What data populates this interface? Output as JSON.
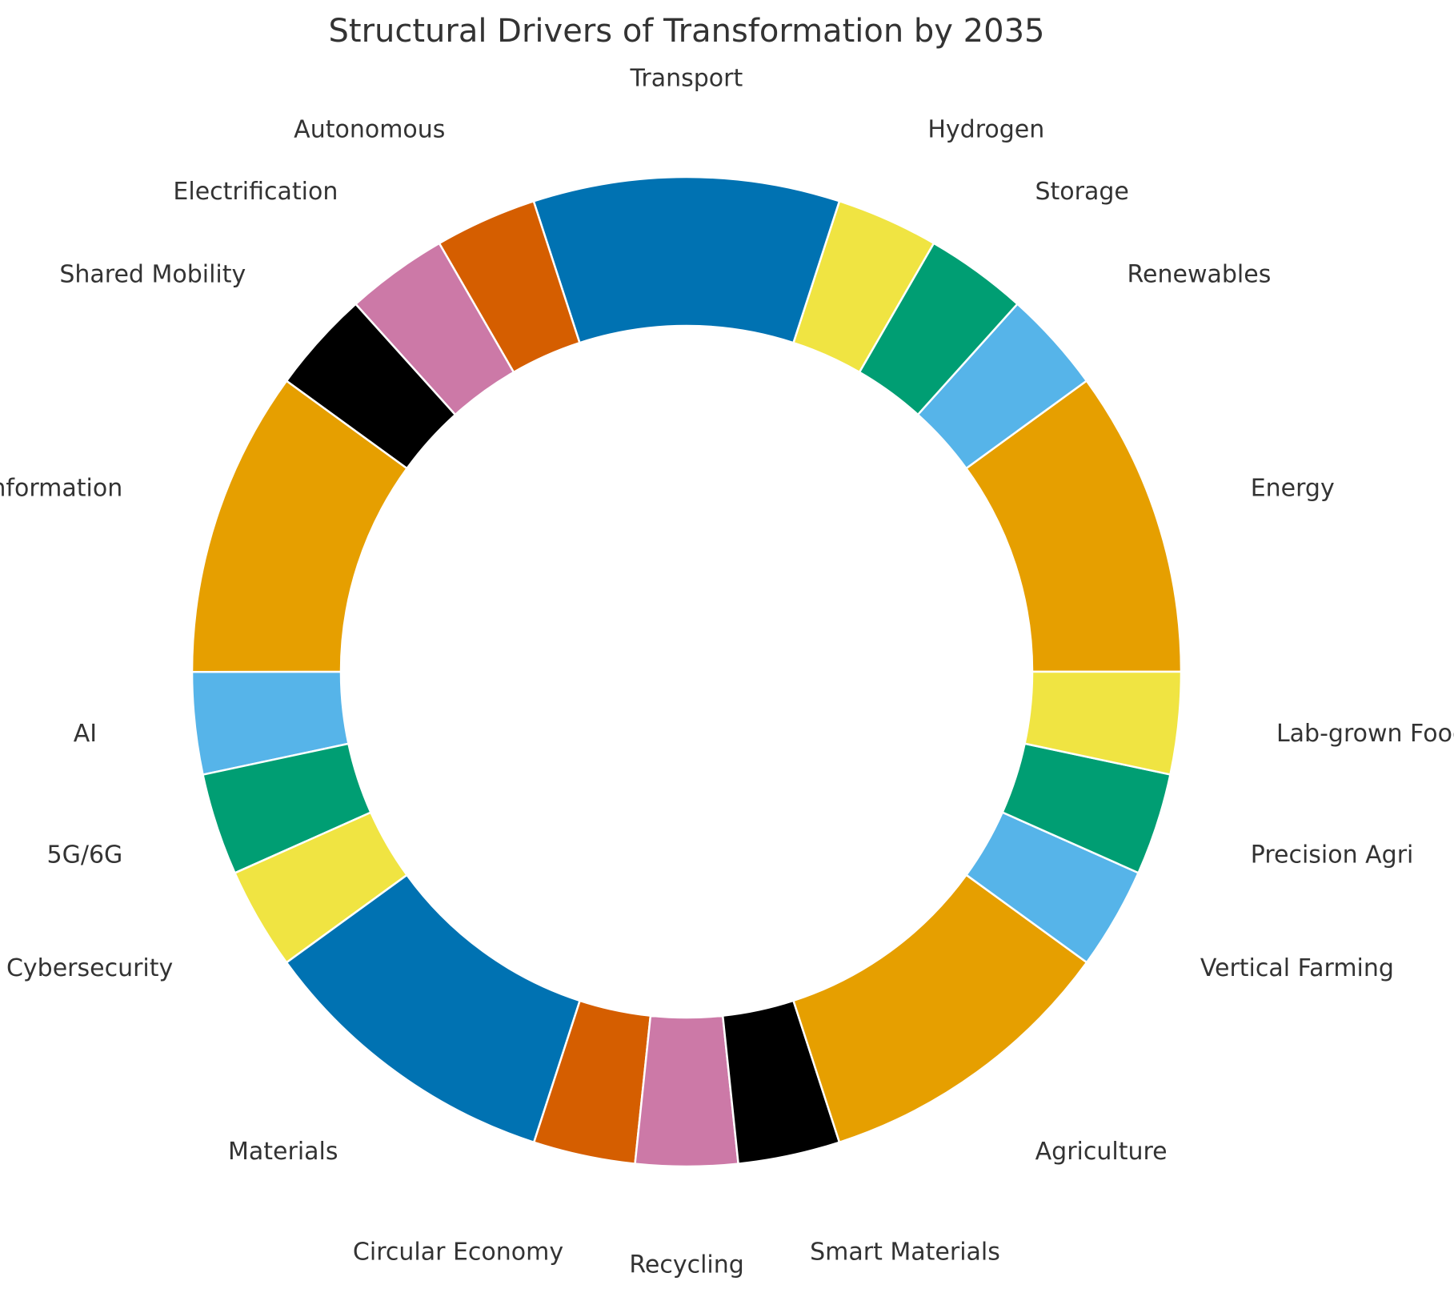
{
  "chart_data": {
    "type": "pie",
    "style": "donut",
    "title": "Structural Drivers of Transformation by 2035",
    "start_angle_deg": 0,
    "direction": "counterclockwise",
    "legend": "none",
    "slices": [
      {
        "label": "Energy",
        "value": 10,
        "color": "#E69F00"
      },
      {
        "label": "Renewables",
        "value": 3.33,
        "color": "#56B4E9"
      },
      {
        "label": "Storage",
        "value": 3.33,
        "color": "#009E73"
      },
      {
        "label": "Hydrogen",
        "value": 3.33,
        "color": "#F0E442"
      },
      {
        "label": "Transport",
        "value": 10,
        "color": "#0072B2"
      },
      {
        "label": "Autonomous",
        "value": 3.33,
        "color": "#D55E00"
      },
      {
        "label": "Electrification",
        "value": 3.33,
        "color": "#CC79A7"
      },
      {
        "label": "Shared Mobility",
        "value": 3.33,
        "color": "#000000"
      },
      {
        "label": "Information",
        "value": 10,
        "color": "#E69F00"
      },
      {
        "label": "AI",
        "value": 3.33,
        "color": "#56B4E9"
      },
      {
        "label": "5G/6G",
        "value": 3.33,
        "color": "#009E73"
      },
      {
        "label": "Cybersecurity",
        "value": 3.33,
        "color": "#F0E442"
      },
      {
        "label": "Materials",
        "value": 10,
        "color": "#0072B2"
      },
      {
        "label": "Circular Economy",
        "value": 3.33,
        "color": "#D55E00"
      },
      {
        "label": "Recycling",
        "value": 3.33,
        "color": "#CC79A7"
      },
      {
        "label": "Smart Materials",
        "value": 3.33,
        "color": "#000000"
      },
      {
        "label": "Agriculture",
        "value": 10,
        "color": "#E69F00"
      },
      {
        "label": "Vertical Farming",
        "value": 3.33,
        "color": "#56B4E9"
      },
      {
        "label": "Precision Agri",
        "value": 3.33,
        "color": "#009E73"
      },
      {
        "label": "Lab-grown Food",
        "value": 3.33,
        "color": "#F0E442"
      }
    ]
  }
}
